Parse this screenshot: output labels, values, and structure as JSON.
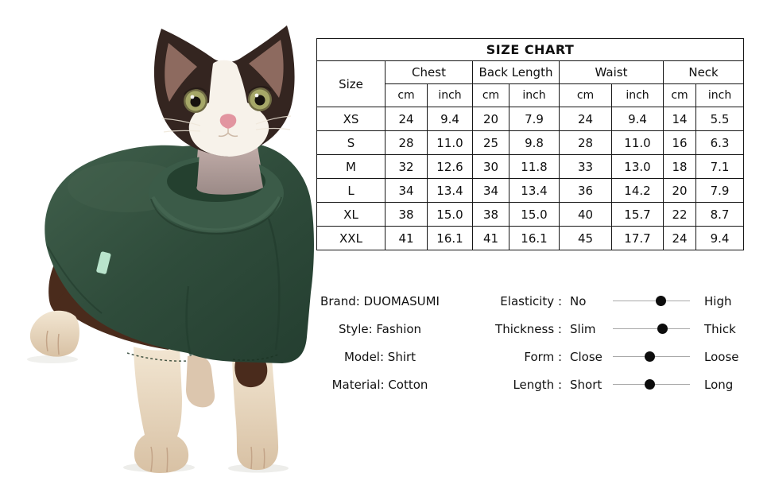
{
  "photo": {
    "description": "Devon Rex cat with dark brown head markings and white muzzle wearing a dark green turtleneck shirt, one front paw lifted",
    "colors": {
      "sweater_green": "#2f4c3b",
      "sweater_collar": "#3b5b48",
      "fur_dark": "#342520",
      "fur_brown": "#4a2b1c",
      "fur_white": "#f7f2ea",
      "fur_cream": "#ead9c2",
      "inner_ear": "#8d6a5f",
      "eye_iris": "#a6a868",
      "nose_pink": "#e295a0",
      "neck_skin": "#b4a09c",
      "tag_mint": "#b9e4cc"
    }
  },
  "size_chart": {
    "title": "SIZE CHART",
    "size_header": "Size",
    "groups": {
      "chest": "Chest",
      "back_length": "Back Length",
      "waist": "Waist",
      "neck": "Neck"
    },
    "units": {
      "cm": "cm",
      "inch": "inch"
    },
    "rows": [
      {
        "size": "XS",
        "values": [
          "24",
          "9.4",
          "20",
          "7.9",
          "24",
          "9.4",
          "14",
          "5.5"
        ]
      },
      {
        "size": "S",
        "values": [
          "28",
          "11.0",
          "25",
          "9.8",
          "28",
          "11.0",
          "16",
          "6.3"
        ]
      },
      {
        "size": "M",
        "values": [
          "32",
          "12.6",
          "30",
          "11.8",
          "33",
          "13.0",
          "18",
          "7.1"
        ]
      },
      {
        "size": "L",
        "values": [
          "34",
          "13.4",
          "34",
          "13.4",
          "36",
          "14.2",
          "20",
          "7.9"
        ]
      },
      {
        "size": "XL",
        "values": [
          "38",
          "15.0",
          "38",
          "15.0",
          "40",
          "15.7",
          "22",
          "8.7"
        ]
      },
      {
        "size": "XXL",
        "values": [
          "41",
          "16.1",
          "41",
          "16.1",
          "45",
          "17.7",
          "24",
          "9.4"
        ]
      }
    ]
  },
  "product_info": {
    "lines": [
      "Brand: DUOMASUMI",
      "Style: Fashion",
      "Model: Shirt",
      "Material: Cotton"
    ]
  },
  "attribute_scales": {
    "rows": [
      {
        "label": "Elasticity :",
        "left": "No",
        "right": "High",
        "position_percent": 62
      },
      {
        "label": "Thickness :",
        "left": "Slim",
        "right": "Thick",
        "position_percent": 64
      },
      {
        "label": "Form :",
        "left": "Close",
        "right": "Loose",
        "position_percent": 48
      },
      {
        "label": "Length :",
        "left": "Short",
        "right": "Long",
        "position_percent": 48
      }
    ]
  }
}
